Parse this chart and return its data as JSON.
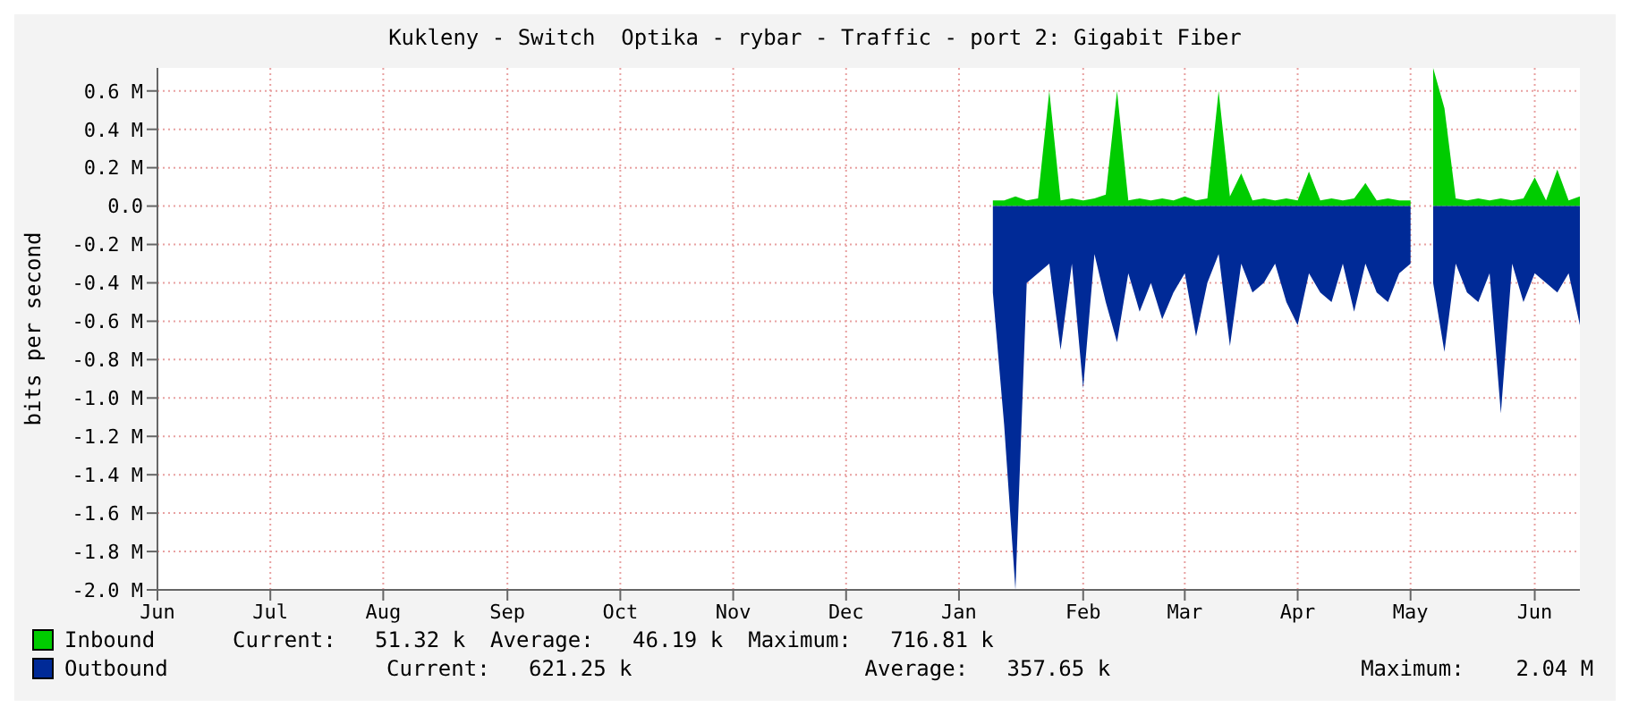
{
  "chart_data": {
    "type": "area",
    "title": "Kukleny - Switch  Optika - rybar - Traffic - port 2: Gigabit Fiber",
    "ylabel": "bits per second",
    "categories": [
      "Jun",
      null,
      null,
      null,
      null,
      null,
      null,
      null,
      null,
      null,
      "Jul",
      null,
      null,
      null,
      null,
      null,
      null,
      null,
      null,
      null,
      "Aug",
      null,
      null,
      null,
      null,
      null,
      null,
      null,
      null,
      null,
      null,
      "Sep",
      null,
      null,
      null,
      null,
      null,
      null,
      null,
      null,
      null,
      "Oct",
      null,
      null,
      null,
      null,
      null,
      null,
      null,
      null,
      null,
      "Nov",
      null,
      null,
      null,
      null,
      null,
      null,
      null,
      null,
      null,
      "Dec",
      null,
      null,
      null,
      null,
      null,
      null,
      null,
      null,
      null,
      "Jan",
      null,
      null,
      null,
      null,
      null,
      null,
      null,
      null,
      null,
      null,
      "Feb",
      null,
      null,
      null,
      null,
      null,
      null,
      null,
      null,
      "Mar",
      null,
      null,
      null,
      null,
      null,
      null,
      null,
      null,
      null,
      "Apr",
      null,
      null,
      null,
      null,
      null,
      null,
      null,
      null,
      null,
      "May",
      null,
      null,
      null,
      null,
      null,
      null,
      null,
      null,
      null,
      null,
      "Jun",
      null,
      null,
      null,
      null
    ],
    "series": [
      {
        "name": "Inbound",
        "color": "#00cc00",
        "values": [
          null,
          null,
          null,
          null,
          null,
          null,
          null,
          null,
          null,
          null,
          null,
          null,
          null,
          null,
          null,
          null,
          null,
          null,
          null,
          null,
          null,
          null,
          null,
          null,
          null,
          null,
          null,
          null,
          null,
          null,
          null,
          null,
          null,
          null,
          null,
          null,
          null,
          null,
          null,
          null,
          null,
          null,
          null,
          null,
          null,
          null,
          null,
          null,
          null,
          null,
          null,
          null,
          null,
          null,
          null,
          null,
          null,
          null,
          null,
          null,
          null,
          null,
          null,
          null,
          null,
          null,
          null,
          null,
          null,
          null,
          null,
          null,
          null,
          null,
          0.03,
          0.03,
          0.05,
          0.03,
          0.04,
          0.6,
          0.03,
          0.04,
          0.03,
          0.04,
          0.06,
          0.6,
          0.03,
          0.04,
          0.03,
          0.04,
          0.03,
          0.05,
          0.03,
          0.04,
          0.6,
          0.05,
          0.17,
          0.03,
          0.04,
          0.03,
          0.04,
          0.03,
          0.18,
          0.03,
          0.04,
          0.03,
          0.04,
          0.12,
          0.03,
          0.04,
          0.03,
          0.03,
          null,
          0.72,
          0.51,
          0.04,
          0.03,
          0.04,
          0.03,
          0.04,
          0.03,
          0.04,
          0.15,
          0.03,
          0.19,
          0.03,
          0.05
        ]
      },
      {
        "name": "Outbound",
        "color": "#002a97",
        "values": [
          null,
          null,
          null,
          null,
          null,
          null,
          null,
          null,
          null,
          null,
          null,
          null,
          null,
          null,
          null,
          null,
          null,
          null,
          null,
          null,
          null,
          null,
          null,
          null,
          null,
          null,
          null,
          null,
          null,
          null,
          null,
          null,
          null,
          null,
          null,
          null,
          null,
          null,
          null,
          null,
          null,
          null,
          null,
          null,
          null,
          null,
          null,
          null,
          null,
          null,
          null,
          null,
          null,
          null,
          null,
          null,
          null,
          null,
          null,
          null,
          null,
          null,
          null,
          null,
          null,
          null,
          null,
          null,
          null,
          null,
          null,
          null,
          null,
          null,
          -0.45,
          -1.14,
          -2.0,
          -0.4,
          -0.35,
          -0.3,
          -0.75,
          -0.3,
          -0.95,
          -0.25,
          -0.5,
          -0.71,
          -0.35,
          -0.55,
          -0.4,
          -0.59,
          -0.45,
          -0.35,
          -0.68,
          -0.4,
          -0.25,
          -0.73,
          -0.3,
          -0.45,
          -0.4,
          -0.3,
          -0.5,
          -0.62,
          -0.35,
          -0.45,
          -0.5,
          -0.3,
          -0.55,
          -0.3,
          -0.45,
          -0.5,
          -0.35,
          -0.3,
          null,
          -0.4,
          -0.76,
          -0.3,
          -0.45,
          -0.5,
          -0.35,
          -1.08,
          -0.3,
          -0.5,
          -0.35,
          -0.4,
          -0.45,
          -0.35,
          -0.62
        ]
      }
    ],
    "ylim": [
      -2.0,
      0.72
    ],
    "yticks": [
      {
        "value": 0.6,
        "label": "0.6 M"
      },
      {
        "value": 0.4,
        "label": "0.4 M"
      },
      {
        "value": 0.2,
        "label": "0.2 M"
      },
      {
        "value": 0,
        "label": "0.0"
      },
      {
        "value": -0.2,
        "label": "-0.2 M"
      },
      {
        "value": -0.4,
        "label": "-0.4 M"
      },
      {
        "value": -0.6,
        "label": "-0.6 M"
      },
      {
        "value": -0.8,
        "label": "-0.8 M"
      },
      {
        "value": -1.0,
        "label": "-1.0 M"
      },
      {
        "value": -1.2,
        "label": "-1.2 M"
      },
      {
        "value": -1.4,
        "label": "-1.4 M"
      },
      {
        "value": -1.6,
        "label": "-1.6 M"
      },
      {
        "value": -1.8,
        "label": "-1.8 M"
      },
      {
        "value": -2.0,
        "label": "-2.0 M"
      }
    ],
    "grid": true,
    "legend": "bottom left",
    "annotations": [
      "Current:   51.32 k",
      "Average:   46.19 k",
      "Maximum:   716.81 k",
      "Current:   621.25 k",
      "Average:   357.65 k",
      "Maximum:    2.04 M"
    ]
  }
}
